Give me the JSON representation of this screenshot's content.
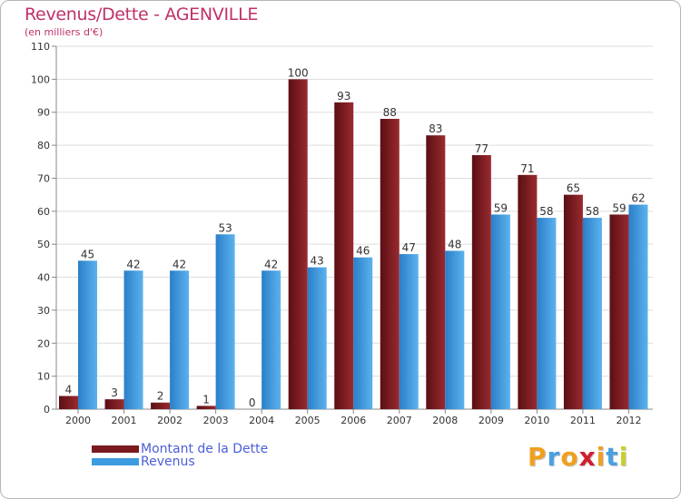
{
  "chart_data": {
    "type": "bar",
    "title": "Revenus/Dette - AGENVILLE",
    "subtitle": "(en milliers d'€)",
    "categories": [
      "2000",
      "2001",
      "2002",
      "2003",
      "2004",
      "2005",
      "2006",
      "2007",
      "2008",
      "2009",
      "2010",
      "2011",
      "2012"
    ],
    "series": [
      {
        "name": "Montant de la Dette",
        "color": "#7a1a1e",
        "values": [
          4,
          3,
          2,
          1,
          0,
          100,
          93,
          88,
          83,
          77,
          71,
          65,
          59
        ]
      },
      {
        "name": "Revenus",
        "color": "#3d9be0",
        "values": [
          45,
          42,
          42,
          53,
          42,
          43,
          46,
          47,
          48,
          59,
          58,
          58,
          62
        ]
      }
    ],
    "ylim": [
      0,
      110
    ],
    "yticks": [
      0,
      10,
      20,
      30,
      40,
      50,
      60,
      70,
      80,
      90,
      100,
      110
    ],
    "grid": true,
    "legend_position": "bottom-left"
  },
  "logo": {
    "letters": [
      "P",
      "r",
      "o",
      "x",
      "i",
      "t",
      "i"
    ],
    "colors": [
      "#f0a020",
      "#4aa0e0",
      "#f0a020",
      "#d02030",
      "#f0a020",
      "#4aa0e0",
      "#c8d030"
    ]
  }
}
